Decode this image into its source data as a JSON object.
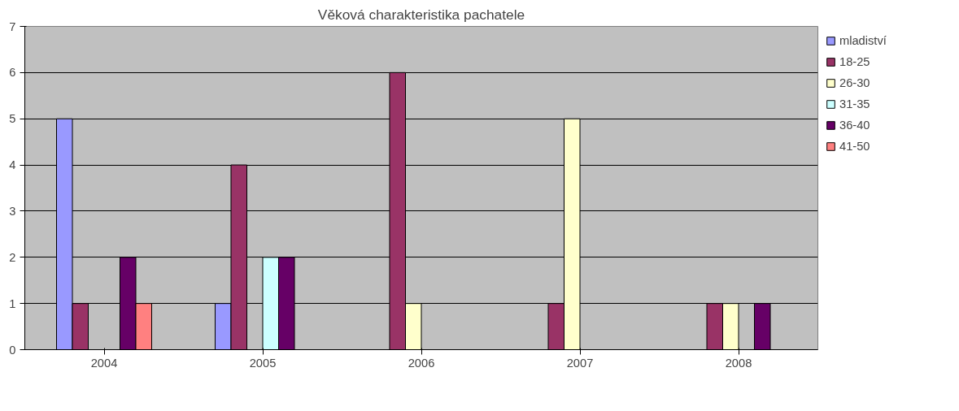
{
  "chart_data": {
    "type": "bar",
    "title": "Věková charakteristika pachatele",
    "categories": [
      "2004",
      "2005",
      "2006",
      "2007",
      "2008"
    ],
    "series": [
      {
        "name": "mladiství",
        "color": "#9999ff",
        "values": [
          5,
          1,
          null,
          null,
          null
        ]
      },
      {
        "name": "18-25",
        "color": "#993366",
        "values": [
          1,
          4,
          6,
          1,
          1
        ]
      },
      {
        "name": "26-30",
        "color": "#ffffcc",
        "values": [
          null,
          null,
          1,
          5,
          1
        ]
      },
      {
        "name": "31-35",
        "color": "#ccffff",
        "values": [
          null,
          2,
          null,
          null,
          null
        ]
      },
      {
        "name": "36-40",
        "color": "#660066",
        "values": [
          2,
          2,
          null,
          null,
          1
        ]
      },
      {
        "name": "41-50",
        "color": "#ff8080",
        "values": [
          1,
          null,
          null,
          null,
          null
        ]
      }
    ],
    "ylim": [
      0,
      7
    ],
    "yticks": [
      0,
      1,
      2,
      3,
      4,
      5,
      6,
      7
    ],
    "grid": "y",
    "legend": "right"
  }
}
